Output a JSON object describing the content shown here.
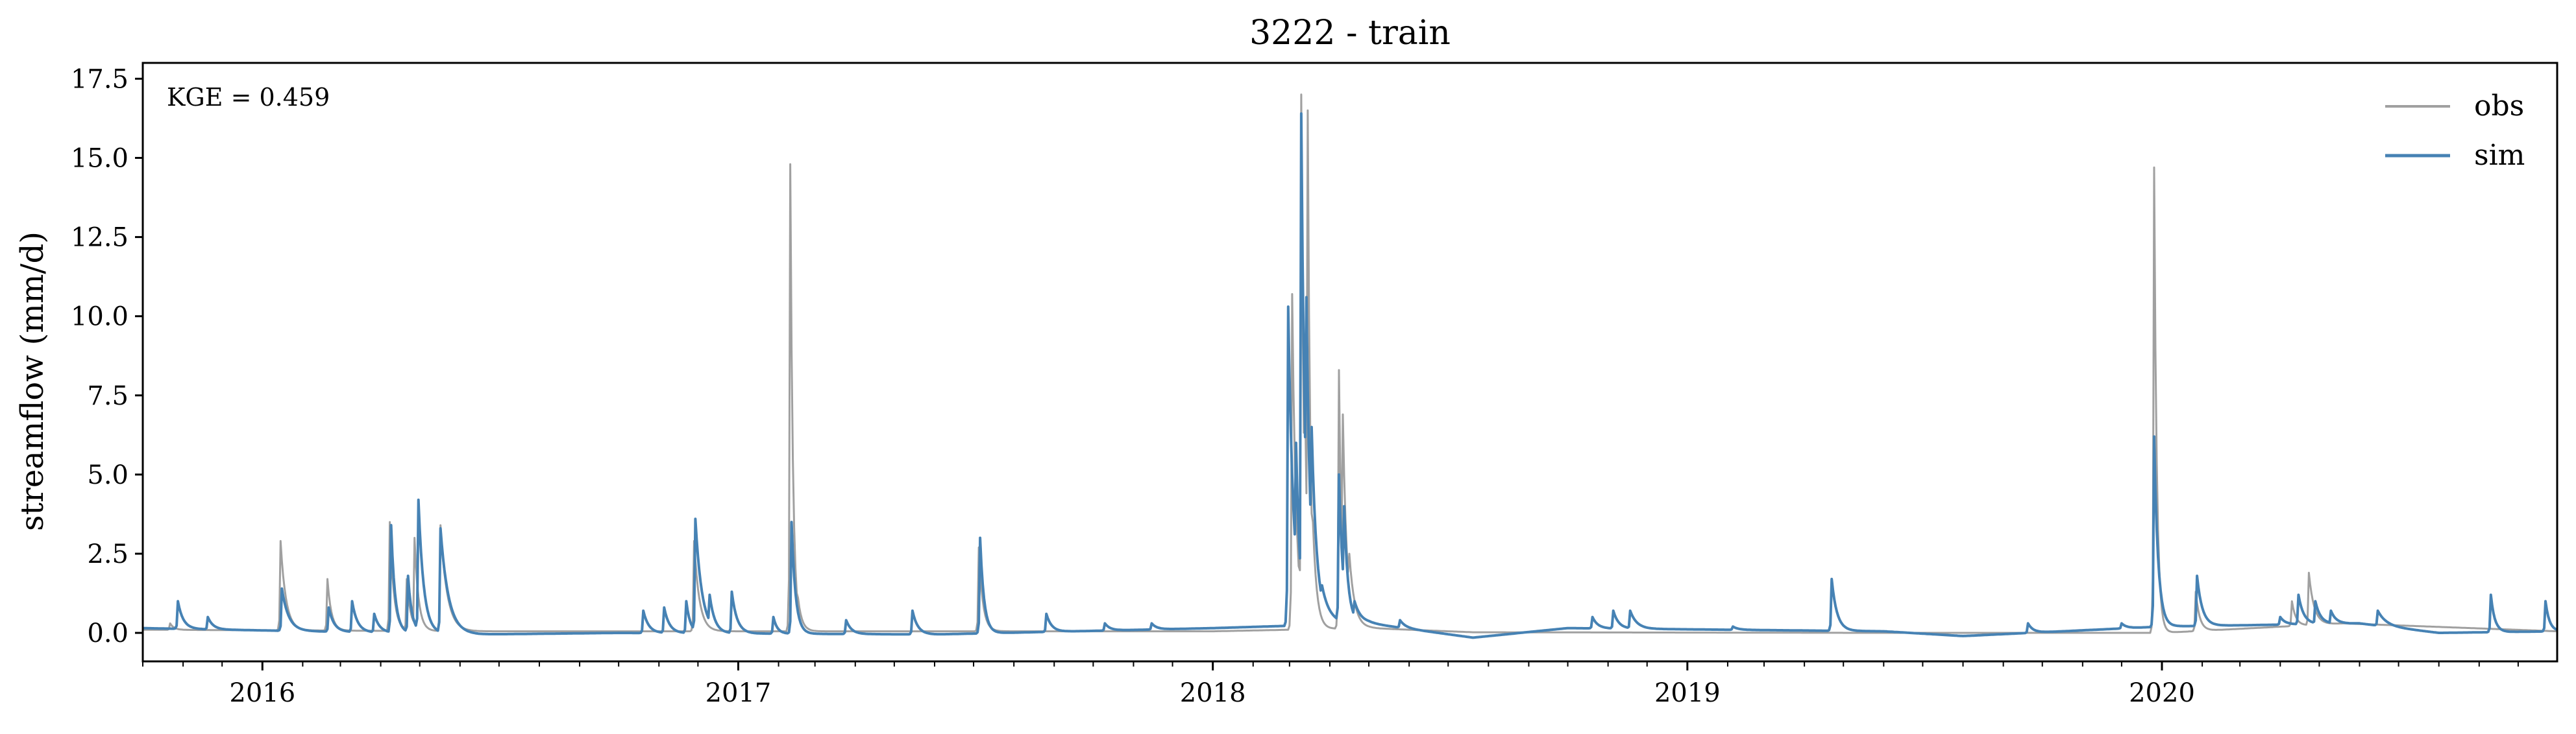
{
  "chart_data": {
    "type": "line",
    "title": "3222 - train",
    "xlabel": "",
    "ylabel": "streamflow (mm/d)",
    "annotation": "KGE = 0.459",
    "x_range": [
      "2015-10-01",
      "2020-10-31"
    ],
    "ylim": [
      -0.9,
      18.0
    ],
    "yticks": [
      0.0,
      2.5,
      5.0,
      7.5,
      10.0,
      12.5,
      15.0,
      17.5
    ],
    "ytick_labels": [
      "0.0",
      "2.5",
      "5.0",
      "7.5",
      "10.0",
      "12.5",
      "15.0",
      "17.5"
    ],
    "xticks": [
      "2016-01-01",
      "2017-01-01",
      "2018-01-01",
      "2019-01-01",
      "2020-01-01"
    ],
    "xtick_labels": [
      "2016",
      "2017",
      "2018",
      "2019",
      "2020"
    ],
    "grid": false,
    "legend_position": "top-right",
    "series": [
      {
        "name": "obs",
        "color": "#a0a0a0",
        "baseline": [
          [
            "2015-10-01",
            0.1
          ],
          [
            "2016-06-15",
            0.05
          ],
          [
            "2016-10-01",
            0.05
          ],
          [
            "2018-01-01",
            0.05
          ],
          [
            "2018-05-01",
            0.15
          ],
          [
            "2018-07-20",
            0.02
          ],
          [
            "2019-06-01",
            0.0
          ],
          [
            "2020-01-01",
            0.0
          ],
          [
            "2020-05-20",
            0.3
          ],
          [
            "2020-10-31",
            0.05
          ]
        ],
        "peaks": [
          [
            "2015-10-22",
            0.3,
            3
          ],
          [
            "2016-01-15",
            2.9,
            4
          ],
          [
            "2016-02-20",
            1.7,
            3
          ],
          [
            "2016-04-08",
            3.5,
            3
          ],
          [
            "2016-04-21",
            1.7,
            3
          ],
          [
            "2016-04-27",
            3.0,
            3
          ],
          [
            "2016-05-17",
            3.4,
            5
          ],
          [
            "2016-11-28",
            2.9,
            4
          ],
          [
            "2017-02-10",
            14.8,
            2
          ],
          [
            "2017-02-16",
            1.1,
            3
          ],
          [
            "2017-07-05",
            2.7,
            3
          ],
          [
            "2018-03-03",
            10.7,
            3
          ],
          [
            "2018-03-07",
            3.0,
            2
          ],
          [
            "2018-03-10",
            17.0,
            2
          ],
          [
            "2018-03-13",
            7.2,
            2
          ],
          [
            "2018-03-15",
            16.5,
            2
          ],
          [
            "2018-03-19",
            3.5,
            3
          ],
          [
            "2018-04-08",
            8.3,
            2
          ],
          [
            "2018-04-11",
            6.9,
            3
          ],
          [
            "2018-04-16",
            2.5,
            4
          ],
          [
            "2019-12-26",
            14.7,
            2
          ],
          [
            "2020-01-27",
            1.3,
            3
          ],
          [
            "2020-04-10",
            1.0,
            3
          ],
          [
            "2020-04-23",
            1.9,
            4
          ]
        ]
      },
      {
        "name": "sim",
        "color": "#4682b4",
        "baseline": [
          [
            "2015-10-01",
            0.15
          ],
          [
            "2016-06-15",
            -0.05
          ],
          [
            "2016-10-01",
            0.0
          ],
          [
            "2017-06-01",
            -0.05
          ],
          [
            "2018-01-01",
            0.15
          ],
          [
            "2018-05-01",
            0.3
          ],
          [
            "2018-07-20",
            -0.15
          ],
          [
            "2018-10-01",
            0.15
          ],
          [
            "2019-06-01",
            0.05
          ],
          [
            "2019-08-01",
            -0.1
          ],
          [
            "2020-01-01",
            0.2
          ],
          [
            "2020-06-01",
            0.3
          ],
          [
            "2020-08-01",
            0.0
          ],
          [
            "2020-10-31",
            0.05
          ]
        ],
        "peaks": [
          [
            "2015-10-28",
            1.0,
            4
          ],
          [
            "2015-11-20",
            0.5,
            4
          ],
          [
            "2016-01-16",
            1.4,
            5
          ],
          [
            "2016-02-21",
            0.8,
            4
          ],
          [
            "2016-03-10",
            1.0,
            4
          ],
          [
            "2016-03-27",
            0.6,
            4
          ],
          [
            "2016-04-09",
            3.4,
            3
          ],
          [
            "2016-04-22",
            1.8,
            3
          ],
          [
            "2016-04-30",
            4.2,
            4
          ],
          [
            "2016-05-17",
            3.3,
            6
          ],
          [
            "2016-10-20",
            0.7,
            4
          ],
          [
            "2016-11-05",
            0.8,
            4
          ],
          [
            "2016-11-22",
            1.0,
            3
          ],
          [
            "2016-11-29",
            3.6,
            5
          ],
          [
            "2016-12-10",
            1.2,
            4
          ],
          [
            "2016-12-27",
            1.3,
            4
          ],
          [
            "2017-01-28",
            0.5,
            3
          ],
          [
            "2017-02-11",
            3.5,
            3
          ],
          [
            "2017-03-25",
            0.4,
            4
          ],
          [
            "2017-05-15",
            0.7,
            4
          ],
          [
            "2017-07-06",
            3.0,
            3
          ],
          [
            "2017-08-26",
            0.6,
            4
          ],
          [
            "2017-10-10",
            0.3,
            4
          ],
          [
            "2017-11-15",
            0.3,
            4
          ],
          [
            "2018-02-28",
            10.3,
            4
          ],
          [
            "2018-03-06",
            6.0,
            3
          ],
          [
            "2018-03-10",
            16.4,
            3
          ],
          [
            "2018-03-14",
            10.6,
            3
          ],
          [
            "2018-03-18",
            6.5,
            4
          ],
          [
            "2018-03-26",
            1.5,
            6
          ],
          [
            "2018-04-08",
            5.0,
            3
          ],
          [
            "2018-04-12",
            4.0,
            3
          ],
          [
            "2018-04-20",
            1.0,
            5
          ],
          [
            "2018-05-25",
            0.4,
            4
          ],
          [
            "2018-10-20",
            0.5,
            4
          ],
          [
            "2018-11-05",
            0.7,
            4
          ],
          [
            "2018-11-18",
            0.7,
            5
          ],
          [
            "2019-02-05",
            0.2,
            4
          ],
          [
            "2019-04-22",
            1.7,
            4
          ],
          [
            "2019-09-20",
            0.3,
            4
          ],
          [
            "2019-12-01",
            0.3,
            4
          ],
          [
            "2019-12-26",
            6.2,
            3
          ],
          [
            "2020-01-28",
            1.8,
            4
          ],
          [
            "2020-04-01",
            0.5,
            4
          ],
          [
            "2020-04-15",
            1.2,
            4
          ],
          [
            "2020-04-28",
            1.0,
            4
          ],
          [
            "2020-05-10",
            0.7,
            4
          ],
          [
            "2020-06-15",
            0.7,
            6
          ],
          [
            "2020-09-10",
            1.2,
            3
          ],
          [
            "2020-10-22",
            1.0,
            3
          ]
        ]
      }
    ]
  }
}
